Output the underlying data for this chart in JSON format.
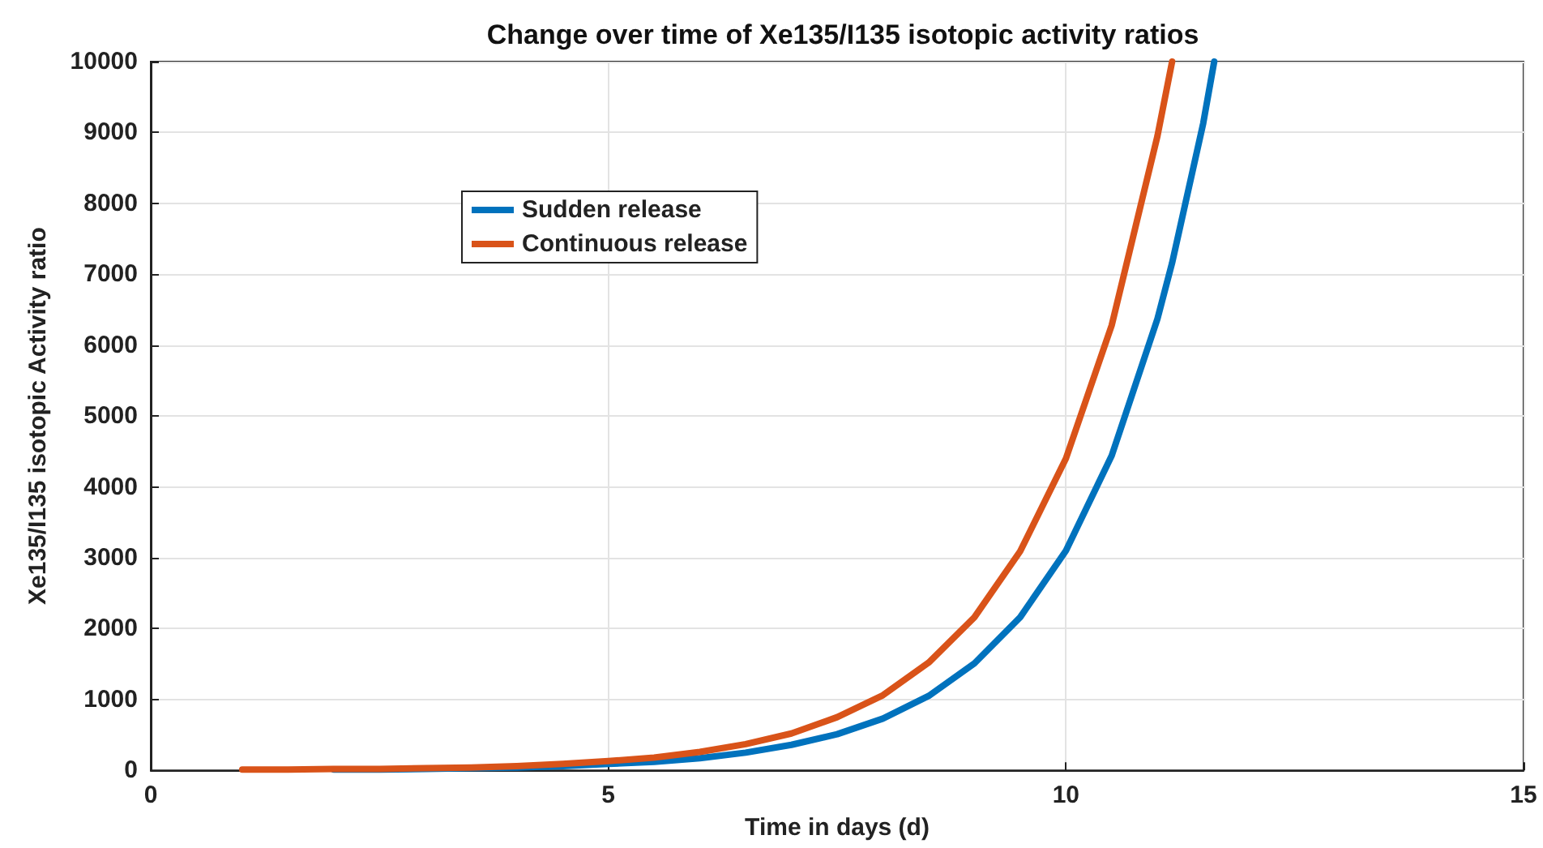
{
  "chart_data": {
    "type": "line",
    "title": "Change over time of Xe135/I135 isotopic activity ratios",
    "xlabel": "Time in days (d)",
    "ylabel": "Xe135/I135 isotopic Activity ratio",
    "x": [
      1,
      1.5,
      2,
      2.5,
      3,
      3.5,
      4,
      4.5,
      5,
      5.5,
      6,
      6.5,
      7,
      7.5,
      8,
      8.5,
      9,
      9.5,
      10,
      10.5,
      11,
      11.16,
      11.5,
      11.62
    ],
    "series": [
      {
        "name": "Sudden release",
        "color": "#0072bd",
        "values": [
          null,
          null,
          10,
          10,
          20,
          30,
          40,
          60,
          90,
          120,
          170,
          250,
          360,
          510,
          730,
          1050,
          1510,
          2160,
          3100,
          4440,
          6370,
          7160,
          9130,
          10000
        ]
      },
      {
        "name": "Continuous release",
        "color": "#d95319",
        "values": [
          10,
          10,
          20,
          20,
          30,
          40,
          60,
          90,
          130,
          180,
          260,
          370,
          520,
          750,
          1060,
          1520,
          2160,
          3090,
          4400,
          6280,
          8950,
          10000,
          null,
          null
        ]
      }
    ],
    "xlim": [
      0,
      15
    ],
    "xticks": [
      0,
      5,
      10,
      15
    ],
    "ylim": [
      0,
      10000
    ],
    "yticks": [
      0,
      1000,
      2000,
      3000,
      4000,
      5000,
      6000,
      7000,
      8000,
      9000,
      10000
    ],
    "grid": true,
    "legend": "top left",
    "marker": "none",
    "line_style": "solid"
  }
}
